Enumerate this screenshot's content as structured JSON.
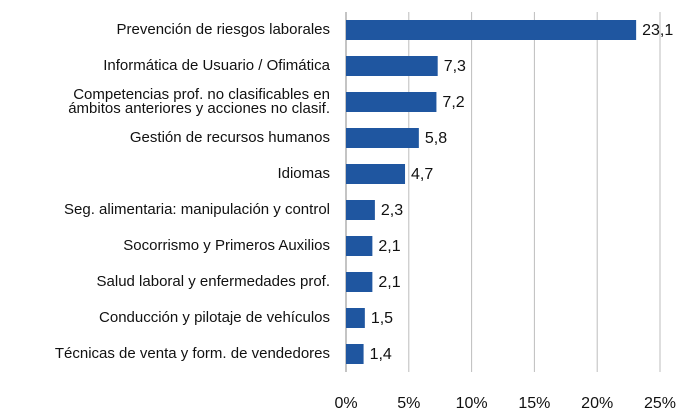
{
  "chart_data": {
    "type": "bar",
    "orientation": "horizontal",
    "categories": [
      "Prevención de riesgos laborales",
      "Informática de Usuario / Ofimática",
      "Competencias prof. no clasificables en\námbitos anteriores y acciones no clasif.",
      "Gestión de recursos humanos",
      "Idiomas",
      "Seg. alimentaria: manipulación y control",
      "Socorrismo y Primeros Auxilios",
      "Salud laboral y enfermedades prof.",
      "Conducción y pilotaje de vehículos",
      "Técnicas de venta y form. de vendedores"
    ],
    "values": [
      23.1,
      7.3,
      7.2,
      5.8,
      4.7,
      2.3,
      2.1,
      2.1,
      1.5,
      1.4
    ],
    "value_labels": [
      "23,1",
      "7,3",
      "7,2",
      "5,8",
      "4,7",
      "2,3",
      "2,1",
      "2,1",
      "1,5",
      "1,4"
    ],
    "color": "#1f56a0",
    "xlim": [
      0,
      25
    ],
    "xticks": [
      {
        "value": 0,
        "label": "0%"
      },
      {
        "value": 5,
        "label": "5%"
      },
      {
        "value": 10,
        "label": "10%"
      },
      {
        "value": 15,
        "label": "15%"
      },
      {
        "value": 20,
        "label": "20%"
      },
      {
        "value": 25,
        "label": "25%"
      }
    ],
    "grid": true
  }
}
